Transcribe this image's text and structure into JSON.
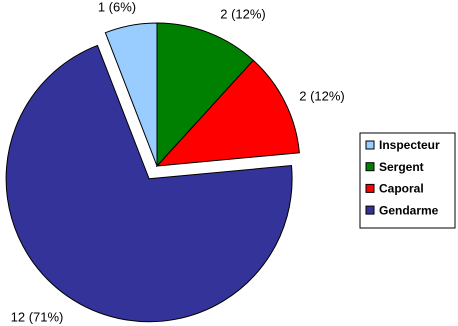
{
  "chart_data": {
    "type": "pie",
    "categories": [
      "Inspecteur",
      "Sergent",
      "Caporal",
      "Gendarme"
    ],
    "values": [
      1,
      2,
      2,
      12
    ],
    "value_labels": [
      "1 (6%)",
      "2 (12%)",
      "2 (12%)",
      "12 (71%)"
    ],
    "colors": [
      "#99ccff",
      "#008000",
      "#ff0000",
      "#333399"
    ],
    "legend": "right"
  }
}
